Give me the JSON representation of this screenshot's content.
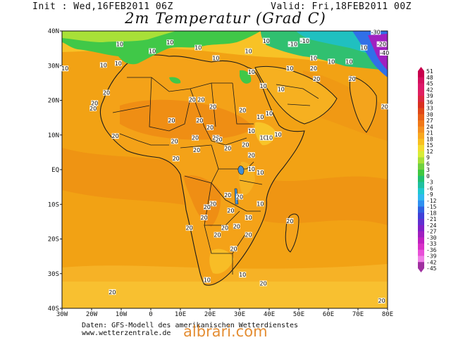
{
  "header": {
    "init": "Init : Wed,16FEB2011 06Z",
    "valid": "Valid: Fri,18FEB2011 00Z",
    "title": "2m Temperatur (Grad C)"
  },
  "axes": {
    "lat_labels": [
      "40N",
      "30N",
      "20N",
      "10N",
      "EQ",
      "10S",
      "20S",
      "30S",
      "40S"
    ],
    "lon_labels": [
      "30W",
      "20W",
      "10W",
      "0",
      "10E",
      "20E",
      "30E",
      "40E",
      "50E",
      "60E",
      "70E",
      "80E"
    ]
  },
  "legend": {
    "values": [
      "51",
      "48",
      "45",
      "42",
      "39",
      "36",
      "33",
      "30",
      "27",
      "24",
      "21",
      "18",
      "15",
      "12",
      "9",
      "6",
      "3",
      "0",
      "-3",
      "-6",
      "-9",
      "-12",
      "-15",
      "-18",
      "-21",
      "-24",
      "-27",
      "-30",
      "-33",
      "-36",
      "-39",
      "-42",
      "-45"
    ],
    "colors": [
      "#c8004c",
      "#d4105c",
      "#dc1a6a",
      "#e02060",
      "#dc2840",
      "#d83020",
      "#e04818",
      "#e86018",
      "#f07818",
      "#f49020",
      "#f8a820",
      "#f8c020",
      "#f4dc30",
      "#d8ec38",
      "#a8e038",
      "#70d040",
      "#40c840",
      "#20c070",
      "#20c0a0",
      "#20c8d0",
      "#30b8f0",
      "#3090f0",
      "#3060e0",
      "#4040d8",
      "#6030d0",
      "#8020c8",
      "#a020c0",
      "#c020c0",
      "#d830c8",
      "#e850d8",
      "#f080e8",
      "#a030a0"
    ]
  },
  "isotherm_labels": [
    {
      "text": "10",
      "lon": -10.5,
      "lat": 36
    },
    {
      "text": "10",
      "lon": 6.5,
      "lat": 36.5
    },
    {
      "text": "10",
      "lon": 16,
      "lat": 35
    },
    {
      "text": "10",
      "lon": 0.5,
      "lat": 34
    },
    {
      "text": "10",
      "lon": 22,
      "lat": 32
    },
    {
      "text": "10",
      "lon": 33,
      "lat": 34
    },
    {
      "text": "10",
      "lon": 39,
      "lat": 37
    },
    {
      "text": "-10",
      "lon": 48,
      "lat": 36
    },
    {
      "text": "-10",
      "lon": 52,
      "lat": 37
    },
    {
      "text": "-30",
      "lon": 76,
      "lat": 39.5
    },
    {
      "text": "-20",
      "lon": 78,
      "lat": 36
    },
    {
      "text": "-40",
      "lon": 79,
      "lat": 33.5
    },
    {
      "text": "10",
      "lon": 55,
      "lat": 32
    },
    {
      "text": "10",
      "lon": 61,
      "lat": 31
    },
    {
      "text": "10",
      "lon": 67,
      "lat": 31
    },
    {
      "text": "10",
      "lon": 72,
      "lat": 35
    },
    {
      "text": "10",
      "lon": -29,
      "lat": 29
    },
    {
      "text": "10",
      "lon": -16,
      "lat": 30
    },
    {
      "text": "10",
      "lon": -11,
      "lat": 30.5
    },
    {
      "text": "10",
      "lon": 34,
      "lat": 28
    },
    {
      "text": "10",
      "lon": 38,
      "lat": 24
    },
    {
      "text": "10",
      "lon": 47,
      "lat": 29
    },
    {
      "text": "10",
      "lon": 44,
      "lat": 23
    },
    {
      "text": "20",
      "lon": 55,
      "lat": 29
    },
    {
      "text": "20",
      "lon": 56,
      "lat": 26
    },
    {
      "text": "20",
      "lon": 68,
      "lat": 26
    },
    {
      "text": "20",
      "lon": 79,
      "lat": 18
    },
    {
      "text": "20",
      "lon": -15,
      "lat": 22
    },
    {
      "text": "20",
      "lon": -19,
      "lat": 19
    },
    {
      "text": "20",
      "lon": -19.5,
      "lat": 17.5
    },
    {
      "text": "20",
      "lon": 14,
      "lat": 20
    },
    {
      "text": "20",
      "lon": 17,
      "lat": 20
    },
    {
      "text": "20",
      "lon": 21,
      "lat": 18
    },
    {
      "text": "20",
      "lon": 31,
      "lat": 17
    },
    {
      "text": "10",
      "lon": 40,
      "lat": 16
    },
    {
      "text": "10",
      "lon": 37,
      "lat": 15
    },
    {
      "text": "10",
      "lon": 34,
      "lat": 11
    },
    {
      "text": "10",
      "lon": 43,
      "lat": 10
    },
    {
      "text": "10",
      "lon": 38,
      "lat": 9
    },
    {
      "text": "20",
      "lon": 7,
      "lat": 14
    },
    {
      "text": "20",
      "lon": 16.5,
      "lat": 14
    },
    {
      "text": "20",
      "lon": 20,
      "lat": 12
    },
    {
      "text": "20",
      "lon": 22,
      "lat": 9
    },
    {
      "text": "20",
      "lon": 23,
      "lat": 8.5
    },
    {
      "text": "20",
      "lon": -12,
      "lat": 9.5
    },
    {
      "text": "20",
      "lon": 8,
      "lat": 8
    },
    {
      "text": "20",
      "lon": 15,
      "lat": 9
    },
    {
      "text": "20",
      "lon": 32,
      "lat": 7
    },
    {
      "text": "20",
      "lon": 26,
      "lat": 6
    },
    {
      "text": "20",
      "lon": 15.5,
      "lat": 5.5
    },
    {
      "text": "20",
      "lon": 34,
      "lat": 4
    },
    {
      "text": "10",
      "lon": 40,
      "lat": 9
    },
    {
      "text": "20",
      "lon": 8.5,
      "lat": 3
    },
    {
      "text": "10",
      "lon": 34,
      "lat": 0
    },
    {
      "text": "10",
      "lon": 37,
      "lat": -1
    },
    {
      "text": "20",
      "lon": 26,
      "lat": -7.5
    },
    {
      "text": "20",
      "lon": 30,
      "lat": -8
    },
    {
      "text": "20",
      "lon": 21,
      "lat": -10
    },
    {
      "text": "20",
      "lon": 19,
      "lat": -11
    },
    {
      "text": "10",
      "lon": 37,
      "lat": -10
    },
    {
      "text": "20",
      "lon": 27,
      "lat": -12
    },
    {
      "text": "20",
      "lon": 18,
      "lat": -14
    },
    {
      "text": "10",
      "lon": 33,
      "lat": -14
    },
    {
      "text": "20",
      "lon": 47,
      "lat": -15
    },
    {
      "text": "20",
      "lon": 13,
      "lat": -17
    },
    {
      "text": "20",
      "lon": 25,
      "lat": -17
    },
    {
      "text": "20",
      "lon": 29,
      "lat": -16.5
    },
    {
      "text": "20",
      "lon": 22.5,
      "lat": -19
    },
    {
      "text": "20",
      "lon": 33,
      "lat": -19
    },
    {
      "text": "20",
      "lon": 28,
      "lat": -23
    },
    {
      "text": "10",
      "lon": 31,
      "lat": -30.5
    },
    {
      "text": "10",
      "lon": 19,
      "lat": -32
    },
    {
      "text": "20",
      "lon": 38,
      "lat": -33
    },
    {
      "text": "20",
      "lon": -13,
      "lat": -35.5
    },
    {
      "text": "20",
      "lon": 78,
      "lat": -38
    }
  ],
  "footer": {
    "line1": "Daten: GFS-Modell des amerikanischen Wetterdienstes",
    "line2": "www.wetterzentrale.de"
  },
  "watermark": "albrari.com"
}
